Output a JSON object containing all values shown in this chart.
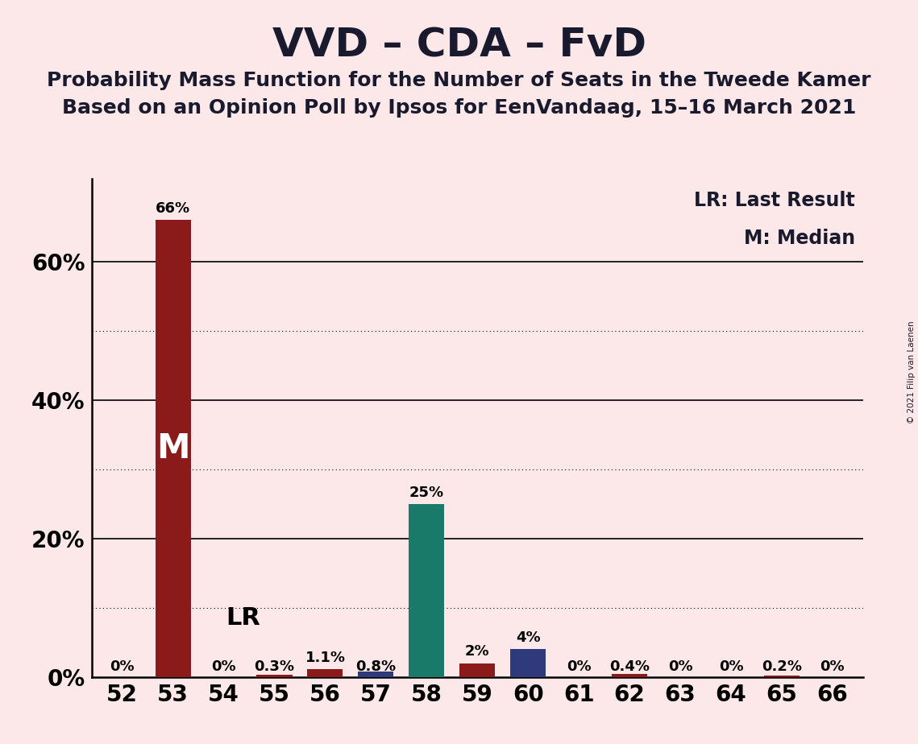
{
  "title": "VVD – CDA – FvD",
  "subtitle1": "Probability Mass Function for the Number of Seats in the Tweede Kamer",
  "subtitle2": "Based on an Opinion Poll by Ipsos for EenVandaag, 15–16 March 2021",
  "copyright": "© 2021 Filip van Laenen",
  "legend_lr": "LR: Last Result",
  "legend_m": "M: Median",
  "seats": [
    52,
    53,
    54,
    55,
    56,
    57,
    58,
    59,
    60,
    61,
    62,
    63,
    64,
    65,
    66
  ],
  "values": [
    0.0,
    66.0,
    0.0,
    0.3,
    1.1,
    0.8,
    25.0,
    2.0,
    4.0,
    0.0,
    0.4,
    0.0,
    0.0,
    0.2,
    0.0
  ],
  "labels": [
    "0%",
    "66%",
    "0%",
    "0.3%",
    "1.1%",
    "0.8%",
    "25%",
    "2%",
    "4%",
    "0%",
    "0.4%",
    "0%",
    "0%",
    "0.2%",
    "0%"
  ],
  "bar_colors": [
    "#8b1a1a",
    "#8b1a1a",
    "#1a7a6a",
    "#8b1a1a",
    "#8b1a1a",
    "#2e3a7c",
    "#1a7a6a",
    "#8b1a1a",
    "#2e3a7c",
    "#8b1a1a",
    "#8b1a1a",
    "#8b1a1a",
    "#8b1a1a",
    "#8b1a1a",
    "#8b1a1a"
  ],
  "median_seat": 53,
  "last_result_seat": 54,
  "background_color": "#fce8e8",
  "ylim": [
    0,
    72
  ],
  "title_fontsize": 36,
  "subtitle_fontsize": 18,
  "axis_fontsize": 20,
  "label_fontsize": 13
}
